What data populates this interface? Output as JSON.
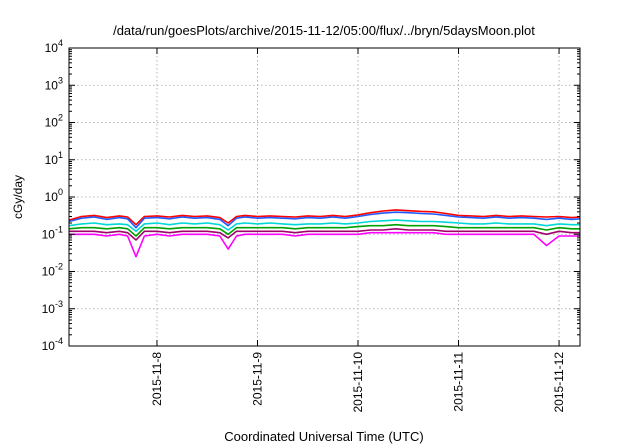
{
  "chart_data": {
    "type": "line",
    "title": "/data/run/goesPlots/archive/2015-11-12/05:00/flux/../bryn/5daysMoon.plot",
    "xlabel": "Coordinated Universal Time (UTC)",
    "ylabel": "cGy/day",
    "y_scale": "log",
    "ylim": [
      0.0001,
      10000
    ],
    "xlim": [
      "2015-11-07 03:00",
      "2015-11-12 05:00"
    ],
    "x_ticks": [
      "2015-11-8",
      "2015-11-9",
      "2015-11-10",
      "2015-11-11",
      "2015-11-12"
    ],
    "y_ticks": [
      {
        "base": "10",
        "exp": "-4"
      },
      {
        "base": "10",
        "exp": "-3"
      },
      {
        "base": "10",
        "exp": "-2"
      },
      {
        "base": "10",
        "exp": "-1"
      },
      {
        "base": "10",
        "exp": "0"
      },
      {
        "base": "10",
        "exp": "1"
      },
      {
        "base": "10",
        "exp": "2"
      },
      {
        "base": "10",
        "exp": "3"
      },
      {
        "base": "10",
        "exp": "4"
      }
    ],
    "grid": true,
    "x": [
      "2015-11-07 03:00",
      "2015-11-07 06:00",
      "2015-11-07 09:00",
      "2015-11-07 12:00",
      "2015-11-07 15:00",
      "2015-11-07 17:00",
      "2015-11-07 19:00",
      "2015-11-07 21:00",
      "2015-11-08 00:00",
      "2015-11-08 03:00",
      "2015-11-08 06:00",
      "2015-11-08 09:00",
      "2015-11-08 12:00",
      "2015-11-08 15:00",
      "2015-11-08 17:00",
      "2015-11-08 19:00",
      "2015-11-08 21:00",
      "2015-11-09 00:00",
      "2015-11-09 03:00",
      "2015-11-09 06:00",
      "2015-11-09 09:00",
      "2015-11-09 12:00",
      "2015-11-09 15:00",
      "2015-11-09 18:00",
      "2015-11-09 21:00",
      "2015-11-10 00:00",
      "2015-11-10 03:00",
      "2015-11-10 06:00",
      "2015-11-10 09:00",
      "2015-11-10 12:00",
      "2015-11-10 15:00",
      "2015-11-10 18:00",
      "2015-11-10 21:00",
      "2015-11-11 00:00",
      "2015-11-11 03:00",
      "2015-11-11 06:00",
      "2015-11-11 09:00",
      "2015-11-11 12:00",
      "2015-11-11 15:00",
      "2015-11-11 18:00",
      "2015-11-11 21:00",
      "2015-11-12 00:00",
      "2015-11-12 03:00",
      "2015-11-12 05:00"
    ],
    "series": [
      {
        "color": "#ff0000",
        "values": [
          0.24,
          0.3,
          0.32,
          0.28,
          0.31,
          0.29,
          0.18,
          0.3,
          0.31,
          0.29,
          0.32,
          0.3,
          0.31,
          0.28,
          0.2,
          0.3,
          0.32,
          0.3,
          0.31,
          0.3,
          0.29,
          0.31,
          0.3,
          0.32,
          0.3,
          0.33,
          0.38,
          0.42,
          0.45,
          0.43,
          0.41,
          0.4,
          0.36,
          0.32,
          0.31,
          0.3,
          0.32,
          0.3,
          0.31,
          0.3,
          0.29,
          0.3,
          0.28,
          0.29
        ]
      },
      {
        "color": "#1f5bff",
        "values": [
          0.22,
          0.27,
          0.29,
          0.25,
          0.28,
          0.26,
          0.15,
          0.27,
          0.28,
          0.26,
          0.29,
          0.27,
          0.28,
          0.25,
          0.17,
          0.27,
          0.29,
          0.27,
          0.28,
          0.27,
          0.26,
          0.28,
          0.27,
          0.29,
          0.27,
          0.3,
          0.34,
          0.37,
          0.39,
          0.38,
          0.36,
          0.35,
          0.32,
          0.29,
          0.28,
          0.27,
          0.29,
          0.27,
          0.28,
          0.27,
          0.25,
          0.27,
          0.25,
          0.26
        ]
      },
      {
        "color": "#00d8d8",
        "values": [
          0.17,
          0.19,
          0.2,
          0.18,
          0.19,
          0.18,
          0.12,
          0.19,
          0.2,
          0.18,
          0.2,
          0.19,
          0.2,
          0.18,
          0.13,
          0.19,
          0.2,
          0.19,
          0.2,
          0.19,
          0.18,
          0.19,
          0.19,
          0.2,
          0.19,
          0.2,
          0.22,
          0.23,
          0.24,
          0.23,
          0.22,
          0.22,
          0.21,
          0.2,
          0.19,
          0.19,
          0.2,
          0.19,
          0.19,
          0.19,
          0.17,
          0.19,
          0.18,
          0.18
        ]
      },
      {
        "color": "#00a000",
        "values": [
          0.14,
          0.15,
          0.15,
          0.14,
          0.15,
          0.14,
          0.09,
          0.15,
          0.15,
          0.14,
          0.15,
          0.15,
          0.15,
          0.14,
          0.1,
          0.15,
          0.15,
          0.15,
          0.15,
          0.15,
          0.14,
          0.15,
          0.15,
          0.15,
          0.15,
          0.16,
          0.17,
          0.17,
          0.18,
          0.17,
          0.17,
          0.17,
          0.16,
          0.15,
          0.15,
          0.15,
          0.15,
          0.15,
          0.15,
          0.15,
          0.13,
          0.15,
          0.14,
          0.14
        ]
      },
      {
        "color": "#a0006a",
        "values": [
          0.12,
          0.12,
          0.12,
          0.11,
          0.12,
          0.11,
          0.07,
          0.12,
          0.12,
          0.11,
          0.12,
          0.12,
          0.12,
          0.11,
          0.08,
          0.12,
          0.12,
          0.12,
          0.12,
          0.12,
          0.11,
          0.12,
          0.12,
          0.12,
          0.12,
          0.12,
          0.13,
          0.13,
          0.14,
          0.13,
          0.13,
          0.13,
          0.12,
          0.12,
          0.12,
          0.12,
          0.12,
          0.12,
          0.12,
          0.12,
          0.1,
          0.12,
          0.11,
          0.11
        ]
      },
      {
        "color": "#ff00ff",
        "values": [
          0.1,
          0.1,
          0.1,
          0.09,
          0.1,
          0.09,
          0.025,
          0.09,
          0.1,
          0.09,
          0.1,
          0.1,
          0.1,
          0.09,
          0.04,
          0.09,
          0.1,
          0.1,
          0.1,
          0.1,
          0.09,
          0.1,
          0.1,
          0.1,
          0.1,
          0.1,
          0.11,
          0.11,
          0.11,
          0.11,
          0.11,
          0.11,
          0.1,
          0.1,
          0.1,
          0.1,
          0.1,
          0.1,
          0.1,
          0.1,
          0.05,
          0.09,
          0.09,
          0.09
        ]
      }
    ]
  }
}
